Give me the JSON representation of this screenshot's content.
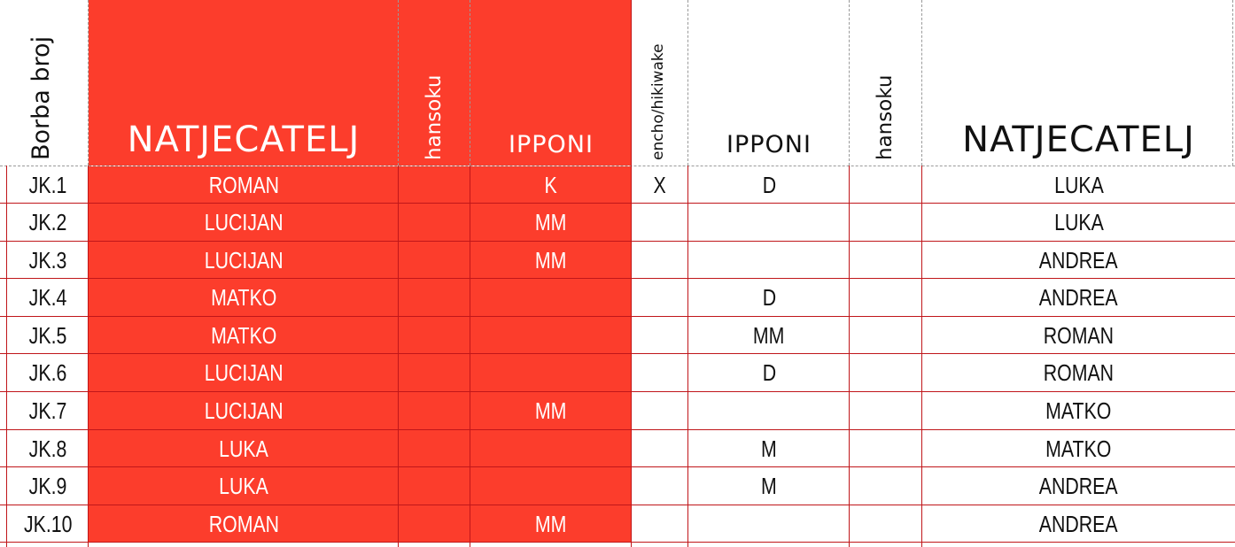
{
  "headers": {
    "borba_broj": "Borba broj",
    "natjecatelj_left": "NATJECATELJ",
    "hansoku_left": "hansoku",
    "ipponi_left": "IPPONI",
    "encho": "encho/hikiwake",
    "ipponi_right": "IPPONI",
    "hansoku_right": "hansoku",
    "natjecatelj_right": "NATJECATELJ"
  },
  "rows": [
    {
      "borba": "JK.1",
      "left": "ROMAN",
      "hansoku_l": "",
      "ipponi_l": "K",
      "encho": "X",
      "ipponi_r": "D",
      "hansoku_r": "",
      "right": "LUKA"
    },
    {
      "borba": "JK.2",
      "left": "LUCIJAN",
      "hansoku_l": "",
      "ipponi_l": "MM",
      "encho": "",
      "ipponi_r": "",
      "hansoku_r": "",
      "right": "LUKA"
    },
    {
      "borba": "JK.3",
      "left": "LUCIJAN",
      "hansoku_l": "",
      "ipponi_l": "MM",
      "encho": "",
      "ipponi_r": "",
      "hansoku_r": "",
      "right": "ANDREA"
    },
    {
      "borba": "JK.4",
      "left": "MATKO",
      "hansoku_l": "",
      "ipponi_l": "",
      "encho": "",
      "ipponi_r": "D",
      "hansoku_r": "",
      "right": "ANDREA"
    },
    {
      "borba": "JK.5",
      "left": "MATKO",
      "hansoku_l": "",
      "ipponi_l": "",
      "encho": "",
      "ipponi_r": "MM",
      "hansoku_r": "",
      "right": "ROMAN"
    },
    {
      "borba": "JK.6",
      "left": "LUCIJAN",
      "hansoku_l": "",
      "ipponi_l": "",
      "encho": "",
      "ipponi_r": "D",
      "hansoku_r": "",
      "right": "ROMAN"
    },
    {
      "borba": "JK.7",
      "left": "LUCIJAN",
      "hansoku_l": "",
      "ipponi_l": "MM",
      "encho": "",
      "ipponi_r": "",
      "hansoku_r": "",
      "right": "MATKO"
    },
    {
      "borba": "JK.8",
      "left": "LUKA",
      "hansoku_l": "",
      "ipponi_l": "",
      "encho": "",
      "ipponi_r": "M",
      "hansoku_r": "",
      "right": "MATKO"
    },
    {
      "borba": "JK.9",
      "left": "LUKA",
      "hansoku_l": "",
      "ipponi_l": "",
      "encho": "",
      "ipponi_r": "M",
      "hansoku_r": "",
      "right": "ANDREA"
    },
    {
      "borba": "JK.10",
      "left": "ROMAN",
      "hansoku_l": "",
      "ipponi_l": "MM",
      "encho": "",
      "ipponi_r": "",
      "hansoku_r": "",
      "right": "ANDREA"
    }
  ],
  "colors": {
    "accent_red": "#fc3d2c",
    "grid_red": "#c0161a"
  }
}
